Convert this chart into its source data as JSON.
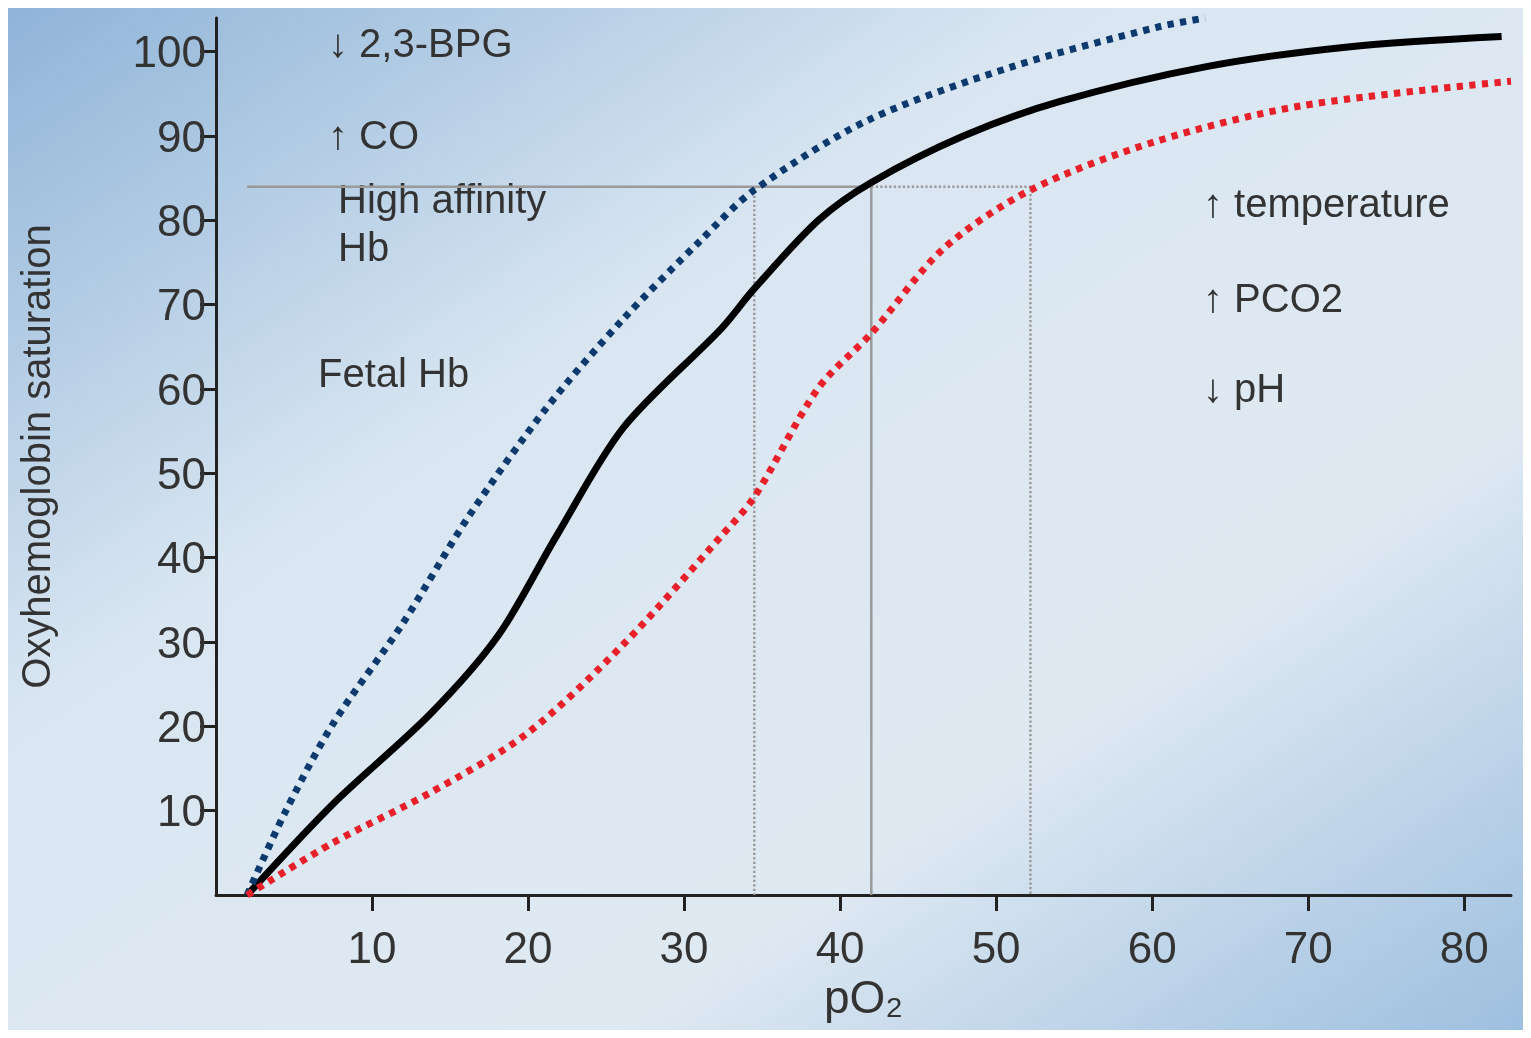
{
  "chart_data": {
    "type": "line",
    "xlabel": "pO₂",
    "ylabel": "Oxyhemoglobin saturation",
    "xlim": [
      0,
      83
    ],
    "xticks": [
      10,
      20,
      30,
      40,
      50,
      60,
      70,
      80
    ],
    "ylim": [
      0,
      104
    ],
    "yticks": [
      10,
      20,
      30,
      40,
      50,
      60,
      70,
      80,
      90,
      100
    ],
    "grid": false,
    "marker": "none",
    "series": [
      {
        "color": "#000000",
        "line_style": "solid",
        "x": [
          2,
          7.5,
          13.7,
          18.1,
          21.8,
          26.1,
          32.4,
          34.5,
          38.6,
          42,
          47.9,
          54.1,
          63.4,
          72.7,
          82.4
        ],
        "values": [
          0,
          10.8,
          21.4,
          30.8,
          42.5,
          55.4,
          67.2,
          71.9,
          80,
          84.5,
          90,
          94.1,
          98.2,
          100.6,
          101.8
        ]
      },
      {
        "color": "#0d3a6e",
        "line_style": "dotted",
        "x": [
          2,
          4.4,
          7.5,
          11.9,
          16.2,
          21.2,
          26.1,
          31.1,
          34.5,
          41.7,
          51,
          60.3,
          63.4
        ],
        "values": [
          0,
          9.7,
          20.3,
          32,
          44.9,
          57.8,
          68.3,
          77.7,
          83.6,
          91.8,
          98.2,
          102.9,
          104
        ]
      },
      {
        "color": "#e8202a",
        "line_style": "dotted",
        "x": [
          2,
          7.5,
          13.7,
          19.9,
          26.1,
          32.4,
          34.5,
          38.6,
          42,
          46.6,
          52.2,
          60.3,
          69.6,
          83
        ],
        "values": [
          0,
          6.2,
          12.1,
          19.1,
          29.7,
          42.6,
          47.2,
          60.1,
          66.6,
          76.6,
          83.6,
          89.4,
          93.6,
          96.5
        ]
      },
      {
        "color": "#9a9a9a",
        "line_style": "solid",
        "x": [
          2,
          42,
          42
        ],
        "values": [
          84,
          84,
          0
        ]
      },
      {
        "color": "#9a9a9a",
        "line_style": "dotted",
        "x": [
          42,
          52.2,
          52.2
        ],
        "values": [
          84,
          84,
          0
        ]
      },
      {
        "color": "#9a9a9a",
        "line_style": "dotted",
        "x": [
          34.5,
          34.5
        ],
        "values": [
          84,
          0
        ]
      }
    ],
    "annotations": [
      "↓ 2,3-BPG",
      "↑ CO",
      "High affinity\nHb",
      "Fetal Hb",
      "↑ temperature",
      "↑ PCO2",
      "↓ pH"
    ]
  }
}
